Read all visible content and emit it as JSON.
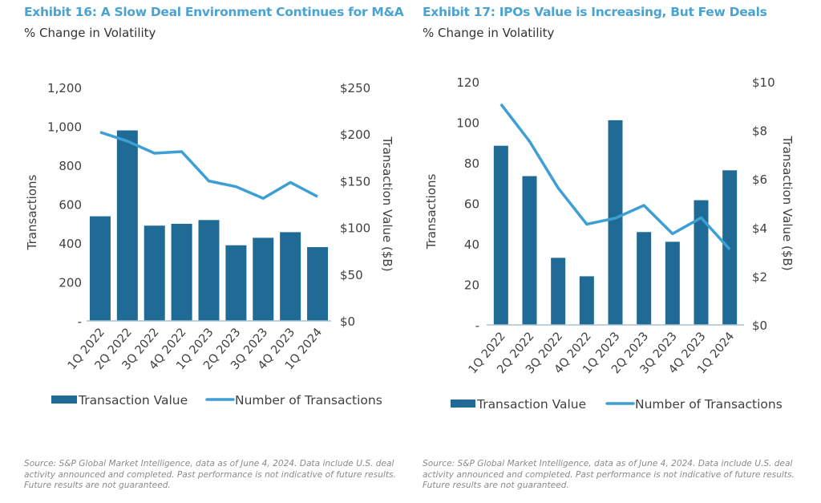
{
  "charts": [
    {
      "title": "Exhibit 16: A Slow Deal Environment Continues for M&A",
      "subtitle": "% Change in Volatility",
      "footnote": "Source: S&P Global Market Intelligence, data as of June 4, 2024. Data include U.S. deal activity announced and completed. Past performance is not indicative of future results. Future results are not guaranteed.",
      "legend": [
        "Transaction Value",
        "Number of Transactions"
      ]
    },
    {
      "title": "Exhibit 17: IPOs Value is Increasing, But Few Deals",
      "subtitle": "% Change in Volatility",
      "footnote": "Source: S&P Global Market Intelligence, data as of June 4, 2024. Data include U.S. deal activity announced and completed. Past performance is not indicative of future results. Future results are not guaranteed.",
      "legend": [
        "Transaction Value",
        "Number of Transactions"
      ]
    }
  ],
  "colors": {
    "title": "#4aa3d1",
    "bar": "#1f6b96",
    "line": "#3d9fd3",
    "axis": "#a9c3d3"
  },
  "chart_data": [
    {
      "type": "bar+line",
      "title": "Exhibit 16: A Slow Deal Environment Continues for M&A",
      "subtitle": "% Change in Volatility",
      "categories": [
        "1Q 2022",
        "2Q 2022",
        "3Q 2022",
        "4Q 2022",
        "1Q 2023",
        "2Q 2023",
        "3Q 2023",
        "4Q 2023",
        "1Q 2024"
      ],
      "ylabel": "Transactions",
      "ylabel_right": "Transaction Value ($B)",
      "ylim": [
        0,
        1200
      ],
      "ylim_right": [
        0,
        250
      ],
      "yticks": [
        "-",
        "200",
        "400",
        "600",
        "800",
        "1,000",
        "1,200"
      ],
      "yticks_right": [
        "$0",
        "$50",
        "$100",
        "$150",
        "$200",
        "$250"
      ],
      "series": [
        {
          "name": "Transaction Value",
          "type": "bar",
          "axis": "right",
          "values": [
            112,
            204,
            102,
            104,
            108,
            81,
            89,
            95,
            79
          ]
        },
        {
          "name": "Number of Transactions",
          "type": "line",
          "axis": "left",
          "values": [
            970,
            924,
            862,
            870,
            719,
            690,
            630,
            712,
            639
          ]
        }
      ],
      "legend": "bottom",
      "grid": false
    },
    {
      "type": "bar+line",
      "title": "Exhibit 17: IPOs Value is Increasing, But Few Deals",
      "subtitle": "% Change in Volatility",
      "categories": [
        "1Q 2022",
        "2Q 2022",
        "3Q 2022",
        "4Q 2022",
        "1Q 2023",
        "2Q 2023",
        "3Q 2023",
        "4Q 2023",
        "1Q 2024"
      ],
      "ylabel": "Transactions",
      "ylabel_right": "Transaction Value ($B)",
      "ylim": [
        0,
        120
      ],
      "ylim_right": [
        0,
        10
      ],
      "yticks": [
        "-",
        "20",
        "40",
        "60",
        "80",
        "100",
        "120"
      ],
      "yticks_right": [
        "$0",
        "$2",
        "$4",
        "$6",
        "$8",
        "$10"
      ],
      "series": [
        {
          "name": "Transaction Value",
          "type": "bar",
          "axis": "right",
          "values": [
            7.37,
            6.12,
            2.76,
            2.0,
            8.42,
            3.82,
            3.42,
            5.13,
            6.36
          ]
        },
        {
          "name": "Number of Transactions",
          "type": "line",
          "axis": "left",
          "values": [
            109,
            90.6,
            67.6,
            49.7,
            52.7,
            59,
            45,
            52.9,
            37.3
          ]
        }
      ],
      "legend": "bottom",
      "grid": false
    }
  ]
}
